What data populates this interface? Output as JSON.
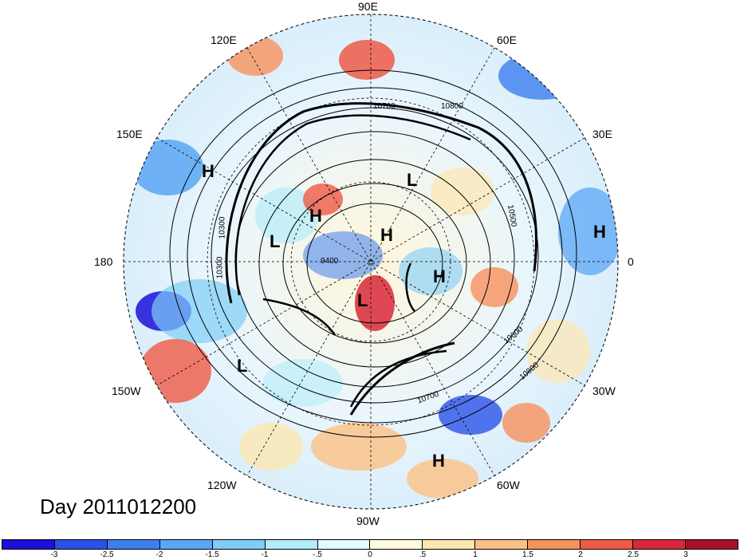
{
  "title": "Day 2011012200",
  "longitude_labels": [
    {
      "text": "90E",
      "key": "lon_90e"
    },
    {
      "text": "60E",
      "key": "lon_60e"
    },
    {
      "text": "120E",
      "key": "lon_120e"
    },
    {
      "text": "30E",
      "key": "lon_30e"
    },
    {
      "text": "150E",
      "key": "lon_150e"
    },
    {
      "text": "180",
      "key": "lon_180"
    },
    {
      "text": "0",
      "key": "lon_0"
    },
    {
      "text": "150W",
      "key": "lon_150w"
    },
    {
      "text": "30W",
      "key": "lon_30w"
    },
    {
      "text": "120W",
      "key": "lon_120w"
    },
    {
      "text": "60W",
      "key": "lon_60w"
    },
    {
      "text": "90W",
      "key": "lon_90w"
    }
  ],
  "pressure_centers": [
    {
      "type": "H",
      "label": "H"
    },
    {
      "type": "L",
      "label": "L"
    },
    {
      "type": "H",
      "label": "H"
    },
    {
      "type": "L",
      "label": "L"
    },
    {
      "type": "H",
      "label": "H"
    },
    {
      "type": "H",
      "label": "H"
    },
    {
      "type": "H",
      "label": "H"
    },
    {
      "type": "L",
      "label": "L"
    },
    {
      "type": "L",
      "label": "L"
    },
    {
      "type": "H",
      "label": "H"
    }
  ],
  "contour_labels": [
    "10700",
    "10800",
    "10500",
    "10600",
    "10800",
    "10700",
    "10300",
    "10300",
    "9400"
  ],
  "colorbar": {
    "colors": [
      "#1a10d8",
      "#2a52e8",
      "#3c7eef",
      "#5aa6f5",
      "#7fcdf6",
      "#b3ecfb",
      "#e4fbfe",
      "#fffbe0",
      "#fde7b0",
      "#fdc083",
      "#f7915e",
      "#ef5a46",
      "#d8283a",
      "#a8102a"
    ],
    "ticks": [
      "-3",
      "-2.5",
      "-2",
      "-1.5",
      "-1",
      "-.5",
      "0",
      ".5",
      "1",
      "1.5",
      "2",
      "2.5",
      "3"
    ]
  }
}
